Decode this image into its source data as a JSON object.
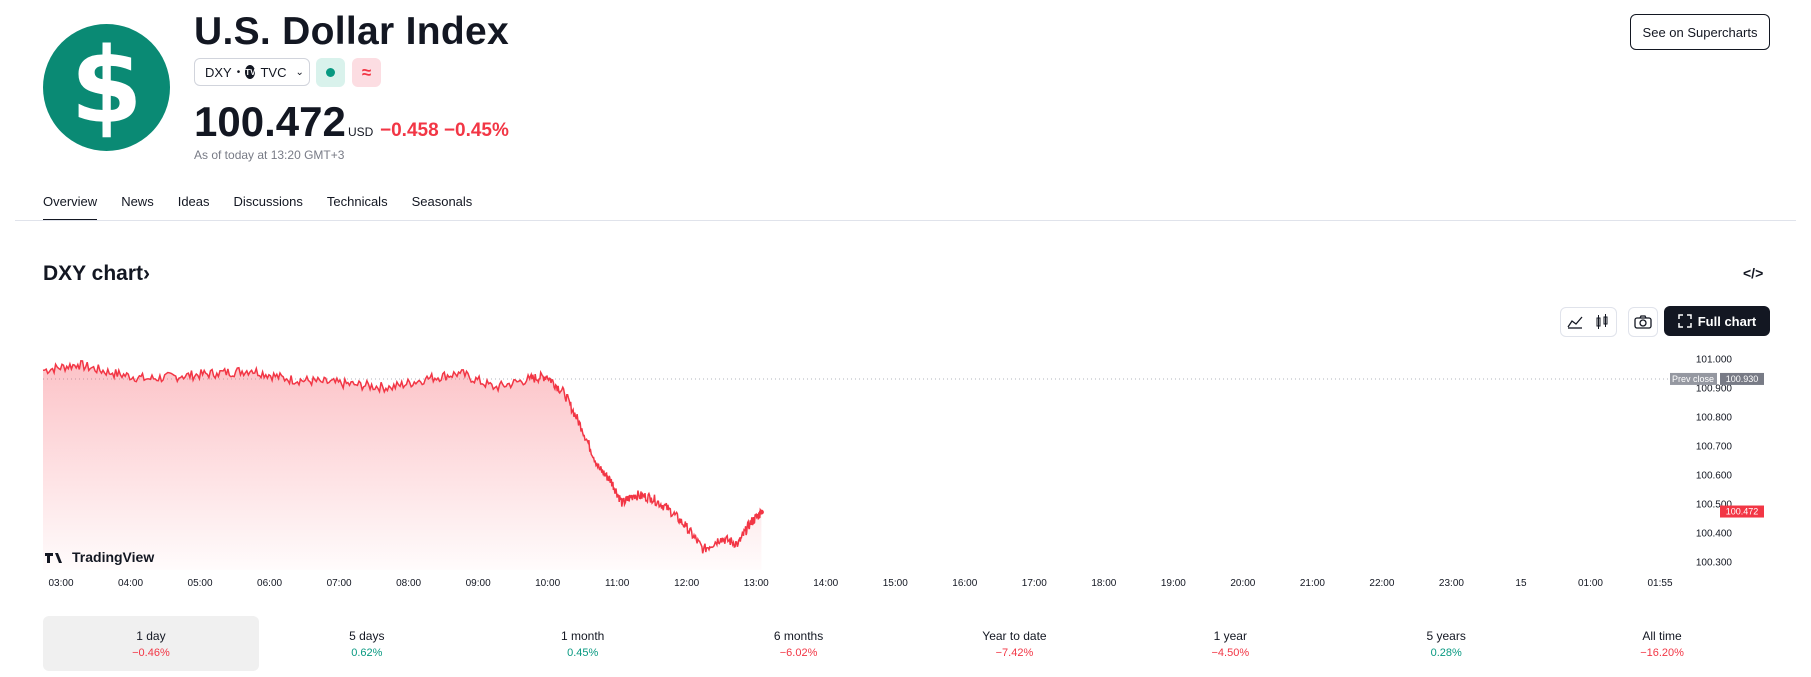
{
  "header": {
    "logo_symbol": "$",
    "title": "U.S. Dollar Index",
    "symbol": "DXY",
    "separator": "•",
    "exchange_icon": "TV",
    "exchange": "TVC",
    "price": "100.472",
    "currency": "USD",
    "change": "−0.458 −0.45%",
    "as_of": "As of today at 13:20 GMT+3",
    "supercharts_label": "See on Supercharts",
    "colors": {
      "brand": "#0a8a74",
      "down": "#f23645",
      "up": "#089981"
    }
  },
  "tabs": [
    "Overview",
    "News",
    "Ideas",
    "Discussions",
    "Technicals",
    "Seasonals"
  ],
  "chart_section": {
    "title": "DXY chart",
    "title_arrow": "›",
    "embed_icon": "</>",
    "full_chart_label": "Full chart",
    "watermark": "TradingView"
  },
  "chart_data": {
    "type": "area",
    "x_ticks": [
      "03:00",
      "04:00",
      "05:00",
      "06:00",
      "07:00",
      "08:00",
      "09:00",
      "10:00",
      "11:00",
      "12:00",
      "13:00",
      "14:00",
      "15:00",
      "16:00",
      "17:00",
      "18:00",
      "19:00",
      "20:00",
      "21:00",
      "22:00",
      "23:00",
      "15",
      "01:00",
      "01:55"
    ],
    "y_ticks": [
      "101.000",
      "100.900",
      "100.800",
      "100.700",
      "100.600",
      "100.500",
      "100.400",
      "100.300"
    ],
    "ylim": [
      100.27,
      101.03
    ],
    "prev_close_label": "Prev close",
    "prev_close": "100.930",
    "last_value": "100.472",
    "series": [
      {
        "x": [
          "03:00",
          "03:30",
          "04:00",
          "04:30",
          "05:00",
          "05:30",
          "06:00",
          "06:30",
          "07:00",
          "07:30",
          "08:00",
          "08:30",
          "09:00",
          "09:30",
          "10:00",
          "10:15",
          "10:30",
          "10:45",
          "11:00",
          "11:10",
          "11:20",
          "11:30",
          "11:45",
          "12:00",
          "12:15",
          "12:30",
          "12:45",
          "13:00",
          "13:10",
          "13:20"
        ],
        "values": [
          100.96,
          100.98,
          100.95,
          100.93,
          100.94,
          100.95,
          100.96,
          100.93,
          100.92,
          100.91,
          100.9,
          100.93,
          100.95,
          100.9,
          100.93,
          100.94,
          100.88,
          100.76,
          100.62,
          100.58,
          100.5,
          100.53,
          100.52,
          100.48,
          100.42,
          100.34,
          100.38,
          100.36,
          100.43,
          100.47
        ]
      }
    ]
  },
  "periods": [
    {
      "label": "1 day",
      "value": "−0.46%",
      "dir": "down"
    },
    {
      "label": "5 days",
      "value": "0.62%",
      "dir": "up"
    },
    {
      "label": "1 month",
      "value": "0.45%",
      "dir": "up"
    },
    {
      "label": "6 months",
      "value": "−6.02%",
      "dir": "down"
    },
    {
      "label": "Year to date",
      "value": "−7.42%",
      "dir": "down"
    },
    {
      "label": "1 year",
      "value": "−4.50%",
      "dir": "down"
    },
    {
      "label": "5 years",
      "value": "0.28%",
      "dir": "up"
    },
    {
      "label": "All time",
      "value": "−16.20%",
      "dir": "down"
    }
  ]
}
